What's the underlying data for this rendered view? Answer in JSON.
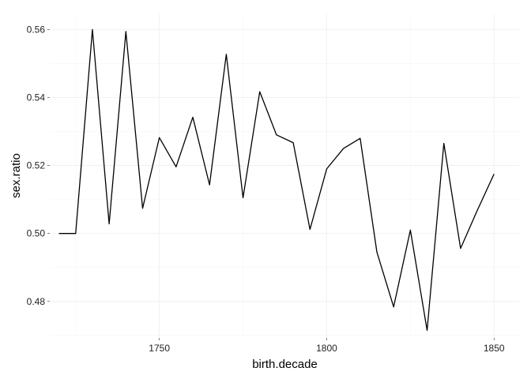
{
  "chart_data": {
    "type": "line",
    "title": "",
    "xlabel": "birth.decade",
    "ylabel": "sex.ratio",
    "xlim": [
      1717.5,
      1857.5
    ],
    "ylim": [
      0.4695,
      0.5645
    ],
    "x_major_ticks": [
      1750,
      1800,
      1850
    ],
    "x_minor_ticks": [
      1725,
      1775,
      1825
    ],
    "y_major_ticks": [
      0.48,
      0.5,
      0.52,
      0.54,
      0.56
    ],
    "y_minor_ticks": [
      0.47,
      0.49,
      0.51,
      0.53,
      0.55
    ],
    "x_tick_labels": [
      "1750",
      "1800",
      "1850"
    ],
    "y_tick_labels": [
      "0.48",
      "0.50",
      "0.52",
      "0.54",
      "0.56"
    ],
    "grid": true,
    "legend": "none",
    "line_color": "#000000",
    "series": [
      {
        "x": [
          1720,
          1725,
          1730,
          1735,
          1740,
          1745,
          1750,
          1755,
          1760,
          1765,
          1770,
          1775,
          1780,
          1785,
          1790,
          1795,
          1800,
          1805,
          1810,
          1815,
          1820,
          1825,
          1830,
          1835,
          1840,
          1845,
          1850
        ],
        "values": [
          0.5,
          0.5,
          0.56,
          0.5028,
          0.5594,
          0.5074,
          0.5282,
          0.5196,
          0.5342,
          0.5143,
          0.5527,
          0.5105,
          0.5417,
          0.529,
          0.5267,
          0.5012,
          0.519,
          0.525,
          0.528,
          0.4945,
          0.4784,
          0.501,
          0.4715,
          0.5265,
          0.4956,
          0.5068,
          0.5175
        ]
      }
    ]
  }
}
